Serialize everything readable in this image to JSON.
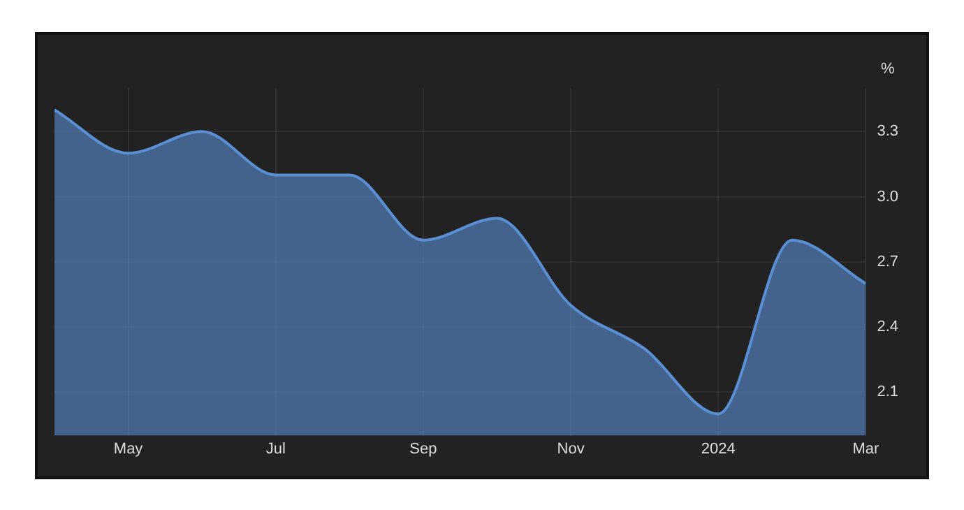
{
  "chart_data": {
    "type": "area",
    "ylabel": "%",
    "x": [
      "2023-04",
      "2023-05",
      "2023-06",
      "2023-07",
      "2023-08",
      "2023-09",
      "2023-10",
      "2023-11",
      "2023-12",
      "2024-01",
      "2024-02",
      "2024-03"
    ],
    "series": [
      {
        "color": "#5b8fd4",
        "values": [
          3.4,
          3.2,
          3.3,
          3.1,
          3.1,
          2.8,
          2.9,
          2.5,
          2.3,
          2.0,
          2.8,
          2.6
        ]
      }
    ],
    "xlim": [
      "2023-04",
      "2024-03"
    ],
    "xticks": [
      {
        "value": "2023-05",
        "label": "May"
      },
      {
        "value": "2023-07",
        "label": "Jul"
      },
      {
        "value": "2023-09",
        "label": "Sep"
      },
      {
        "value": "2023-11",
        "label": "Nov"
      },
      {
        "value": "2024-01",
        "label": "2024"
      },
      {
        "value": "2024-03",
        "label": "Mar"
      }
    ],
    "ylim": [
      1.9,
      3.5
    ],
    "yticks": [
      2.1,
      2.4,
      2.7,
      {
        "value": 3,
        "label": "3.0"
      },
      3.3
    ],
    "grid": true,
    "legend": false
  }
}
